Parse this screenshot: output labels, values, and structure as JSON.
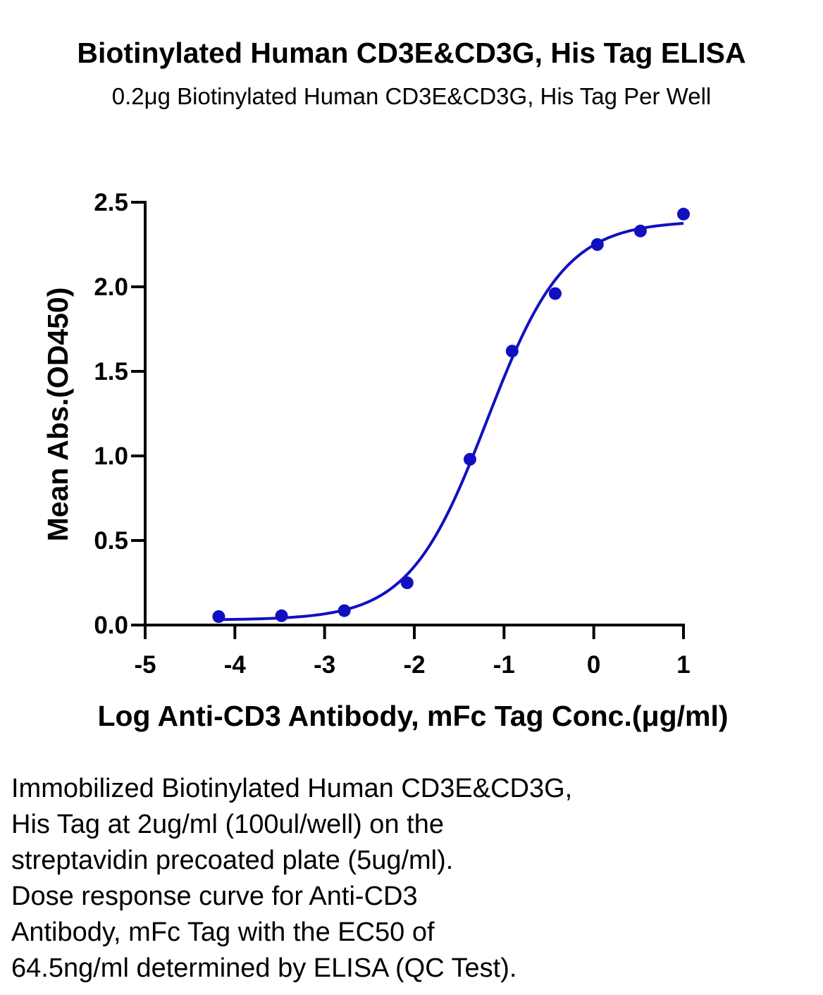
{
  "chart_data": {
    "type": "scatter",
    "title": "Biotinylated Human CD3E&CD3G, His Tag ELISA",
    "subtitle": "0.2μg Biotinylated Human CD3E&CD3G, His Tag Per Well",
    "xlabel": "Log Anti-CD3 Antibody, mFc Tag Conc.(μg/ml)",
    "ylabel": "Mean Abs.(OD450)",
    "xlim": [
      -5,
      1
    ],
    "ylim": [
      0,
      2.5
    ],
    "x_ticks": [
      "-5",
      "-4",
      "-3",
      "-2",
      "-1",
      "0",
      "1"
    ],
    "y_ticks": [
      "0.0",
      "0.5",
      "1.0",
      "1.5",
      "2.0",
      "2.5"
    ],
    "grid": false,
    "color": "#1010c0",
    "series": [
      {
        "x": [
          -4.18,
          -3.48,
          -2.78,
          -2.08,
          -1.38,
          -0.91,
          -0.43,
          0.04,
          0.52,
          1.0
        ],
        "y": [
          0.05,
          0.055,
          0.085,
          0.25,
          0.98,
          1.62,
          1.96,
          2.25,
          2.33,
          2.43
        ]
      }
    ],
    "fit_curve": {
      "bottom": 0.03,
      "top": 2.39,
      "log_ec50": -1.19,
      "hill_slope": 1.0
    }
  },
  "caption": {
    "lines": [
      "Immobilized Biotinylated Human CD3E&CD3G,",
      "His Tag at 2ug/ml (100ul/well) on the",
      "streptavidin precoated plate (5ug/ml).",
      "Dose response curve for Anti-CD3",
      "Antibody, mFc Tag with the EC50 of",
      "64.5ng/ml determined by ELISA (QC Test)."
    ]
  }
}
